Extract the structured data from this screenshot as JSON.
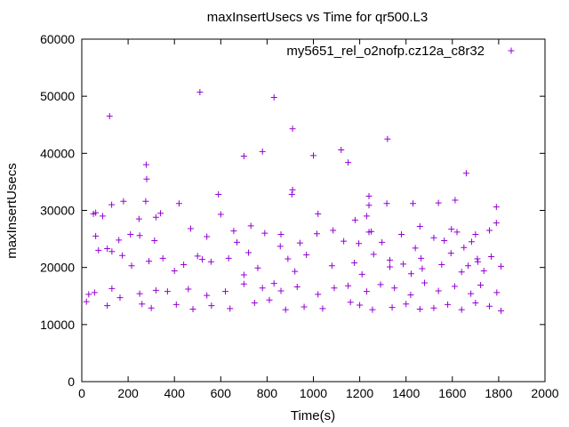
{
  "chart_data": {
    "type": "scatter",
    "title": "maxInsertUsecs vs Time for qr500.L3",
    "xlabel": "Time(s)",
    "ylabel": "maxInsertUsecs",
    "xlim": [
      0,
      2000
    ],
    "ylim": [
      0,
      60000
    ],
    "xticks": [
      "0",
      "200",
      "400",
      "600",
      "800",
      "1000",
      "1200",
      "1400",
      "1600",
      "1800",
      "2000"
    ],
    "yticks": [
      "0",
      "10000",
      "20000",
      "30000",
      "40000",
      "50000",
      "60000"
    ],
    "grid": false,
    "legend_position": "top-right",
    "marker": "+",
    "series": [
      {
        "name": "my5651_rel_o2nofp.cz12a_c8r32",
        "color": "#9400d3",
        "points": [
          [
            120,
            46500
          ],
          [
            510,
            50700
          ],
          [
            830,
            49800
          ],
          [
            910,
            44300
          ],
          [
            1320,
            42500
          ],
          [
            1120,
            40600
          ],
          [
            1000,
            39600
          ],
          [
            700,
            39500
          ],
          [
            780,
            40300
          ],
          [
            1150,
            38400
          ],
          [
            278,
            38000
          ],
          [
            280,
            35500
          ],
          [
            1660,
            36500
          ],
          [
            1790,
            30600
          ],
          [
            910,
            33600
          ],
          [
            907,
            32800
          ],
          [
            590,
            32800
          ],
          [
            1240,
            32500
          ],
          [
            1240,
            30900
          ],
          [
            276,
            31600
          ],
          [
            180,
            31600
          ],
          [
            129,
            31000
          ],
          [
            420,
            31200
          ],
          [
            1317,
            31200
          ],
          [
            1430,
            31200
          ],
          [
            1612,
            31800
          ],
          [
            1540,
            31300
          ],
          [
            1020,
            29400
          ],
          [
            1180,
            28300
          ],
          [
            1460,
            27200
          ],
          [
            1596,
            26700
          ],
          [
            1230,
            29000
          ],
          [
            340,
            29500
          ],
          [
            600,
            29300
          ],
          [
            60,
            29600
          ],
          [
            50,
            29400
          ],
          [
            90,
            29000
          ],
          [
            247,
            28500
          ],
          [
            320,
            28800
          ],
          [
            470,
            26800
          ],
          [
            730,
            27300
          ],
          [
            860,
            25800
          ],
          [
            1085,
            26500
          ],
          [
            1250,
            26300
          ],
          [
            1380,
            25800
          ],
          [
            1520,
            25200
          ],
          [
            1620,
            26200
          ],
          [
            1700,
            25800
          ],
          [
            1760,
            26500
          ],
          [
            1790,
            27800
          ],
          [
            60,
            25500
          ],
          [
            210,
            25800
          ],
          [
            250,
            25600
          ],
          [
            540,
            25400
          ],
          [
            656,
            26400
          ],
          [
            790,
            26000
          ],
          [
            1015,
            25900
          ],
          [
            1131,
            24600
          ],
          [
            1240,
            26200
          ],
          [
            1440,
            23400
          ],
          [
            1650,
            23500
          ],
          [
            160,
            24800
          ],
          [
            314,
            24700
          ],
          [
            670,
            24400
          ],
          [
            942,
            24300
          ],
          [
            1196,
            24200
          ],
          [
            1296,
            24400
          ],
          [
            1565,
            24700
          ],
          [
            1683,
            24500
          ],
          [
            72,
            23000
          ],
          [
            110,
            23300
          ],
          [
            130,
            22800
          ],
          [
            175,
            22100
          ],
          [
            500,
            22000
          ],
          [
            720,
            22600
          ],
          [
            857,
            23700
          ],
          [
            970,
            22200
          ],
          [
            1260,
            22300
          ],
          [
            1330,
            21300
          ],
          [
            1465,
            21600
          ],
          [
            1594,
            22500
          ],
          [
            1708,
            21500
          ],
          [
            1768,
            21900
          ],
          [
            215,
            20300
          ],
          [
            290,
            21100
          ],
          [
            350,
            21600
          ],
          [
            440,
            20500
          ],
          [
            520,
            21400
          ],
          [
            558,
            21000
          ],
          [
            634,
            21600
          ],
          [
            760,
            19900
          ],
          [
            890,
            21500
          ],
          [
            1080,
            20300
          ],
          [
            1177,
            20800
          ],
          [
            1330,
            20100
          ],
          [
            1388,
            20600
          ],
          [
            1470,
            19800
          ],
          [
            1554,
            20500
          ],
          [
            1668,
            20300
          ],
          [
            1710,
            21000
          ],
          [
            1810,
            20200
          ],
          [
            400,
            19400
          ],
          [
            700,
            18700
          ],
          [
            920,
            19300
          ],
          [
            1210,
            18800
          ],
          [
            1422,
            18900
          ],
          [
            1640,
            19200
          ],
          [
            1736,
            19400
          ],
          [
            30,
            15300
          ],
          [
            55,
            15600
          ],
          [
            130,
            16300
          ],
          [
            165,
            14700
          ],
          [
            250,
            15400
          ],
          [
            320,
            16000
          ],
          [
            370,
            15800
          ],
          [
            460,
            16200
          ],
          [
            540,
            15100
          ],
          [
            620,
            15800
          ],
          [
            700,
            17100
          ],
          [
            780,
            16400
          ],
          [
            830,
            17200
          ],
          [
            860,
            15900
          ],
          [
            930,
            16600
          ],
          [
            1020,
            15300
          ],
          [
            1090,
            16400
          ],
          [
            1150,
            16800
          ],
          [
            1230,
            15800
          ],
          [
            1290,
            17000
          ],
          [
            1350,
            16400
          ],
          [
            1420,
            15200
          ],
          [
            1480,
            17300
          ],
          [
            1540,
            15900
          ],
          [
            1610,
            16700
          ],
          [
            1680,
            15400
          ],
          [
            1722,
            16900
          ],
          [
            1792,
            15600
          ],
          [
            20,
            14000
          ],
          [
            110,
            13300
          ],
          [
            260,
            13600
          ],
          [
            300,
            12900
          ],
          [
            408,
            13500
          ],
          [
            480,
            12700
          ],
          [
            560,
            13300
          ],
          [
            640,
            12800
          ],
          [
            746,
            13800
          ],
          [
            810,
            14300
          ],
          [
            880,
            12600
          ],
          [
            960,
            13100
          ],
          [
            1040,
            12800
          ],
          [
            1160,
            13900
          ],
          [
            1200,
            13400
          ],
          [
            1255,
            12600
          ],
          [
            1340,
            13000
          ],
          [
            1400,
            13600
          ],
          [
            1460,
            12700
          ],
          [
            1520,
            12900
          ],
          [
            1580,
            13500
          ],
          [
            1640,
            12600
          ],
          [
            1700,
            13800
          ],
          [
            1760,
            13200
          ],
          [
            1810,
            12400
          ]
        ]
      }
    ]
  }
}
